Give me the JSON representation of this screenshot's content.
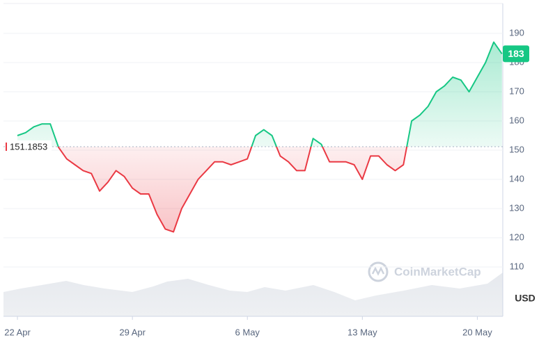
{
  "chart_data": {
    "type": "line",
    "baseline": 151.1853,
    "last_label": "183",
    "currency": "USD",
    "watermark": "CoinMarketCap",
    "up_color": "#16c784",
    "down_color": "#ea3943",
    "ylim": [
      102,
      198
    ],
    "yticks": [
      110,
      120,
      130,
      140,
      150,
      160,
      170,
      180,
      190
    ],
    "xlim": [
      -1.7,
      59.1
    ],
    "xticks": [
      {
        "value": 0,
        "label": "22 Apr"
      },
      {
        "value": 14,
        "label": "29 Apr"
      },
      {
        "value": 28,
        "label": "6 May"
      },
      {
        "value": 42,
        "label": "13 May"
      },
      {
        "value": 56,
        "label": "20 May"
      }
    ],
    "grid": true,
    "values": [
      155,
      156,
      158,
      159,
      159,
      151,
      147,
      145,
      143,
      142,
      136,
      139,
      143,
      141,
      137,
      135,
      135,
      128,
      123,
      122,
      130,
      135,
      140,
      143,
      146,
      146,
      145,
      146,
      147,
      155,
      157,
      155,
      148,
      146,
      143,
      143,
      154,
      152,
      146,
      146,
      146,
      145,
      140,
      148,
      148,
      145,
      143,
      145,
      160,
      162,
      165,
      170,
      172,
      175,
      174,
      170,
      175,
      180,
      187,
      183
    ]
  }
}
